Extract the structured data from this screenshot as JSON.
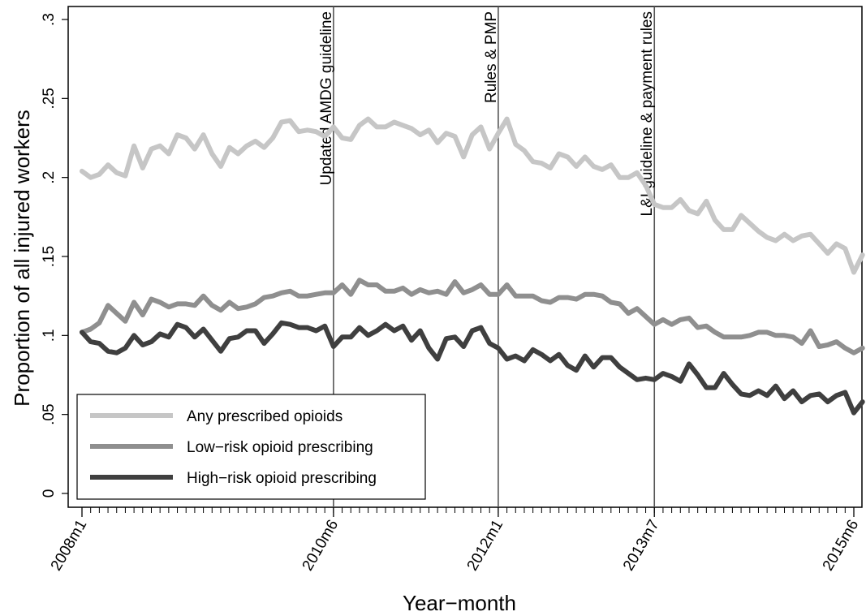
{
  "chart_data": {
    "type": "line",
    "ylabel": "Proportion of all injured workers",
    "xlabel": "Year−month",
    "ylim": [
      0,
      0.3
    ],
    "y_ticks": [
      0,
      0.05,
      0.1,
      0.15,
      0.2,
      0.25,
      0.3
    ],
    "y_tick_labels": [
      "0",
      ".05",
      ".1",
      ".15",
      ".2",
      ".25",
      ".3"
    ],
    "x_start": "2008m1",
    "x_end": "2015m6",
    "x_tick_labels": [
      "2008m1",
      "2010m6",
      "2012m1",
      "2013m7",
      "2015m6"
    ],
    "grid": false,
    "legend_position": "bottom-left",
    "event_lines": [
      {
        "x": "2010m6",
        "label": "Updated AMDG guideline"
      },
      {
        "x": "2012m1",
        "label": "Rules & PMP"
      },
      {
        "x": "2013m7",
        "label": "L&I guideline & payment rules"
      }
    ],
    "series": [
      {
        "name": "Any prescribed opioids",
        "color": "#c6c6c6",
        "values": [
          0.204,
          0.2,
          0.202,
          0.208,
          0.203,
          0.201,
          0.22,
          0.206,
          0.218,
          0.22,
          0.215,
          0.227,
          0.225,
          0.218,
          0.227,
          0.215,
          0.207,
          0.219,
          0.215,
          0.22,
          0.223,
          0.219,
          0.225,
          0.235,
          0.236,
          0.229,
          0.23,
          0.229,
          0.226,
          0.232,
          0.225,
          0.224,
          0.233,
          0.237,
          0.232,
          0.232,
          0.235,
          0.233,
          0.231,
          0.227,
          0.23,
          0.222,
          0.228,
          0.226,
          0.213,
          0.227,
          0.232,
          0.218,
          0.228,
          0.237,
          0.221,
          0.217,
          0.21,
          0.209,
          0.206,
          0.215,
          0.213,
          0.207,
          0.213,
          0.207,
          0.205,
          0.208,
          0.2,
          0.2,
          0.203,
          0.195,
          0.183,
          0.181,
          0.181,
          0.186,
          0.179,
          0.177,
          0.185,
          0.173,
          0.167,
          0.167,
          0.176,
          0.171,
          0.166,
          0.162,
          0.16,
          0.164,
          0.16,
          0.163,
          0.164,
          0.158,
          0.152,
          0.158,
          0.155,
          0.14,
          0.151
        ]
      },
      {
        "name": "Low−risk opioid prescribing",
        "color": "#8f8f8f",
        "values": [
          0.102,
          0.104,
          0.108,
          0.119,
          0.114,
          0.109,
          0.121,
          0.113,
          0.123,
          0.121,
          0.118,
          0.12,
          0.12,
          0.119,
          0.125,
          0.119,
          0.116,
          0.121,
          0.117,
          0.118,
          0.12,
          0.124,
          0.125,
          0.127,
          0.128,
          0.125,
          0.125,
          0.126,
          0.127,
          0.127,
          0.132,
          0.126,
          0.135,
          0.132,
          0.132,
          0.128,
          0.128,
          0.13,
          0.126,
          0.129,
          0.127,
          0.128,
          0.126,
          0.134,
          0.127,
          0.129,
          0.132,
          0.126,
          0.126,
          0.132,
          0.125,
          0.125,
          0.125,
          0.122,
          0.121,
          0.124,
          0.124,
          0.123,
          0.126,
          0.126,
          0.125,
          0.121,
          0.12,
          0.114,
          0.117,
          0.112,
          0.107,
          0.11,
          0.107,
          0.11,
          0.111,
          0.105,
          0.106,
          0.102,
          0.099,
          0.099,
          0.099,
          0.1,
          0.102,
          0.102,
          0.1,
          0.1,
          0.099,
          0.095,
          0.103,
          0.093,
          0.094,
          0.096,
          0.092,
          0.089,
          0.092
        ]
      },
      {
        "name": "High−risk opioid prescribing",
        "color": "#3f3f3f",
        "values": [
          0.102,
          0.096,
          0.095,
          0.09,
          0.089,
          0.092,
          0.1,
          0.094,
          0.096,
          0.101,
          0.099,
          0.107,
          0.105,
          0.099,
          0.104,
          0.097,
          0.09,
          0.098,
          0.099,
          0.103,
          0.103,
          0.095,
          0.101,
          0.108,
          0.107,
          0.105,
          0.105,
          0.103,
          0.106,
          0.093,
          0.099,
          0.099,
          0.105,
          0.1,
          0.103,
          0.107,
          0.103,
          0.106,
          0.097,
          0.103,
          0.092,
          0.085,
          0.098,
          0.099,
          0.093,
          0.103,
          0.105,
          0.095,
          0.092,
          0.085,
          0.087,
          0.084,
          0.091,
          0.088,
          0.084,
          0.088,
          0.081,
          0.078,
          0.087,
          0.08,
          0.086,
          0.086,
          0.08,
          0.076,
          0.072,
          0.073,
          0.072,
          0.076,
          0.074,
          0.071,
          0.082,
          0.075,
          0.067,
          0.067,
          0.076,
          0.069,
          0.063,
          0.062,
          0.065,
          0.062,
          0.068,
          0.06,
          0.065,
          0.058,
          0.062,
          0.063,
          0.058,
          0.062,
          0.064,
          0.051,
          0.058
        ]
      }
    ]
  }
}
